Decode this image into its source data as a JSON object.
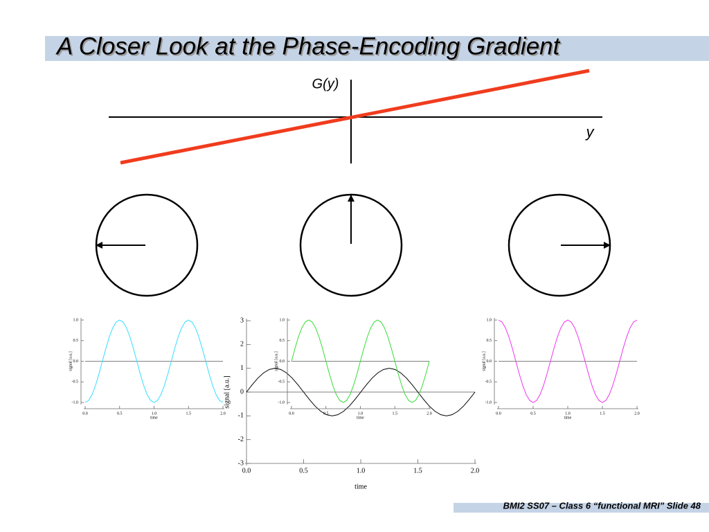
{
  "title": "A Closer Look at the Phase-Encoding Gradient",
  "footer": "BMI2 SS07 – Class 6 “functional MRI” Slide 48",
  "diagram": {
    "gradient_label": "G(y)",
    "axis_label": "y"
  },
  "chart_data": [
    {
      "type": "line",
      "color": "#33ddff",
      "xlabel": "time",
      "ylabel": "signal [a.u.]",
      "xlim": [
        0,
        2
      ],
      "ylim": [
        -1,
        1
      ],
      "xticks": [
        {
          "value": 0,
          "label": "0.0"
        },
        {
          "value": 0.5,
          "label": "0.5"
        },
        {
          "value": 1,
          "label": "1.0"
        },
        {
          "value": 1.5,
          "label": "1.5"
        },
        {
          "value": 2,
          "label": "2.0"
        }
      ],
      "yticks": [
        {
          "value": -1,
          "label": "-1.0"
        },
        {
          "value": -0.5,
          "label": "-0.5"
        },
        {
          "value": 0,
          "label": "0.0"
        },
        {
          "value": 0.5,
          "label": "0.5"
        },
        {
          "value": 1,
          "label": "1.0"
        }
      ],
      "x": [
        0,
        0.05,
        0.1,
        0.15,
        0.2,
        0.25,
        0.3,
        0.35,
        0.4,
        0.45,
        0.5,
        0.55,
        0.6,
        0.65,
        0.7,
        0.75,
        0.8,
        0.85,
        0.9,
        0.95,
        1,
        1.05,
        1.1,
        1.15,
        1.2,
        1.25,
        1.3,
        1.35,
        1.4,
        1.45,
        1.5,
        1.55,
        1.6,
        1.65,
        1.7,
        1.75,
        1.8,
        1.85,
        1.9,
        1.95,
        2
      ],
      "values": [
        -1,
        -0.951,
        -0.809,
        -0.588,
        -0.309,
        0,
        0.309,
        0.588,
        0.809,
        0.951,
        1,
        0.951,
        0.809,
        0.588,
        0.309,
        0,
        -0.309,
        -0.588,
        -0.809,
        -0.951,
        -1,
        -0.951,
        -0.809,
        -0.588,
        -0.309,
        0,
        0.309,
        0.588,
        0.809,
        0.951,
        1,
        0.951,
        0.809,
        0.588,
        0.309,
        0,
        -0.309,
        -0.588,
        -0.809,
        -0.951,
        -1
      ]
    },
    {
      "type": "line",
      "color": "#000000",
      "xlabel": "time",
      "ylabel": "signal [a.u.]",
      "xlim": [
        0,
        2
      ],
      "ylim": [
        -3,
        3
      ],
      "xticks": [
        {
          "value": 0,
          "label": "0.0"
        },
        {
          "value": 0.5,
          "label": "0.5"
        },
        {
          "value": 1,
          "label": "1.0"
        },
        {
          "value": 1.5,
          "label": "1.5"
        },
        {
          "value": 2,
          "label": "2.0"
        }
      ],
      "yticks": [
        -3,
        -2,
        -1,
        0,
        1,
        2,
        3
      ],
      "x": [
        0,
        0.05,
        0.1,
        0.15,
        0.2,
        0.25,
        0.3,
        0.35,
        0.4,
        0.45,
        0.5,
        0.55,
        0.6,
        0.65,
        0.7,
        0.75,
        0.8,
        0.85,
        0.9,
        0.95,
        1,
        1.05,
        1.1,
        1.15,
        1.2,
        1.25,
        1.3,
        1.35,
        1.4,
        1.45,
        1.5,
        1.55,
        1.6,
        1.65,
        1.7,
        1.75,
        1.8,
        1.85,
        1.9,
        1.95,
        2
      ],
      "values": [
        0,
        0.309,
        0.588,
        0.809,
        0.951,
        1,
        0.951,
        0.809,
        0.588,
        0.309,
        0,
        -0.309,
        -0.588,
        -0.809,
        -0.951,
        -1,
        -0.951,
        -0.809,
        -0.588,
        -0.309,
        0,
        0.309,
        0.588,
        0.809,
        0.951,
        1,
        0.951,
        0.809,
        0.588,
        0.309,
        0,
        -0.309,
        -0.588,
        -0.809,
        -0.951,
        -1,
        -0.951,
        -0.809,
        -0.588,
        -0.309,
        0
      ]
    },
    {
      "type": "line",
      "color": "#33dd33",
      "xlabel": "time",
      "ylabel": "signal [a.u.]",
      "xlim": [
        0,
        2
      ],
      "ylim": [
        -1,
        1
      ],
      "xticks": [
        {
          "value": 0,
          "label": "0.0"
        },
        {
          "value": 0.5,
          "label": "0.5"
        },
        {
          "value": 1,
          "label": "1.0"
        },
        {
          "value": 1.5,
          "label": "1.5"
        },
        {
          "value": 2,
          "label": "2.0"
        }
      ],
      "yticks": [
        {
          "value": -1,
          "label": "-1.0"
        },
        {
          "value": -0.5,
          "label": "-0.5"
        },
        {
          "value": 0,
          "label": "0.0"
        },
        {
          "value": 0.5,
          "label": "0.5"
        },
        {
          "value": 1,
          "label": "1.0"
        }
      ],
      "x": [
        0,
        0.05,
        0.1,
        0.15,
        0.2,
        0.25,
        0.3,
        0.35,
        0.4,
        0.45,
        0.5,
        0.55,
        0.6,
        0.65,
        0.7,
        0.75,
        0.8,
        0.85,
        0.9,
        0.95,
        1,
        1.05,
        1.1,
        1.15,
        1.2,
        1.25,
        1.3,
        1.35,
        1.4,
        1.45,
        1.5,
        1.55,
        1.6,
        1.65,
        1.7,
        1.75,
        1.8,
        1.85,
        1.9,
        1.95,
        2
      ],
      "values": [
        0,
        0.309,
        0.588,
        0.809,
        0.951,
        1,
        0.951,
        0.809,
        0.588,
        0.309,
        0,
        -0.309,
        -0.588,
        -0.809,
        -0.951,
        -1,
        -0.951,
        -0.809,
        -0.588,
        -0.309,
        0,
        0.309,
        0.588,
        0.809,
        0.951,
        1,
        0.951,
        0.809,
        0.588,
        0.309,
        0,
        -0.309,
        -0.588,
        -0.809,
        -0.951,
        -1,
        -0.951,
        -0.809,
        -0.588,
        -0.309,
        0
      ]
    },
    {
      "type": "line",
      "color": "#ee33ee",
      "xlabel": "time",
      "ylabel": "signal [a.u.]",
      "xlim": [
        0,
        2
      ],
      "ylim": [
        -1,
        1
      ],
      "xticks": [
        {
          "value": 0,
          "label": "0.0"
        },
        {
          "value": 0.5,
          "label": "0.5"
        },
        {
          "value": 1,
          "label": "1.0"
        },
        {
          "value": 1.5,
          "label": "1.5"
        },
        {
          "value": 2,
          "label": "2.0"
        }
      ],
      "yticks": [
        {
          "value": -1,
          "label": "-1.0"
        },
        {
          "value": -0.5,
          "label": "-0.5"
        },
        {
          "value": 0,
          "label": "0.0"
        },
        {
          "value": 0.5,
          "label": "0.5"
        },
        {
          "value": 1,
          "label": "1.0"
        }
      ],
      "x": [
        0,
        0.05,
        0.1,
        0.15,
        0.2,
        0.25,
        0.3,
        0.35,
        0.4,
        0.45,
        0.5,
        0.55,
        0.6,
        0.65,
        0.7,
        0.75,
        0.8,
        0.85,
        0.9,
        0.95,
        1,
        1.05,
        1.1,
        1.15,
        1.2,
        1.25,
        1.3,
        1.35,
        1.4,
        1.45,
        1.5,
        1.55,
        1.6,
        1.65,
        1.7,
        1.75,
        1.8,
        1.85,
        1.9,
        1.95,
        2
      ],
      "values": [
        1,
        0.951,
        0.809,
        0.588,
        0.309,
        0,
        -0.309,
        -0.588,
        -0.809,
        -0.951,
        -1,
        -0.951,
        -0.809,
        -0.588,
        -0.309,
        0,
        0.309,
        0.588,
        0.809,
        0.951,
        1,
        0.951,
        0.809,
        0.588,
        0.309,
        0,
        -0.309,
        -0.588,
        -0.809,
        -0.951,
        -1,
        -0.951,
        -0.809,
        -0.588,
        -0.309,
        0,
        0.309,
        0.588,
        0.809,
        0.951,
        1
      ]
    }
  ]
}
